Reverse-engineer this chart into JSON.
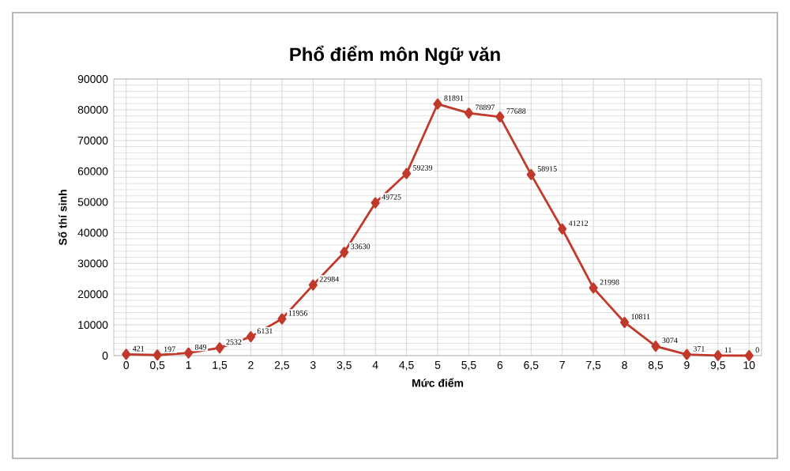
{
  "chart_data": {
    "type": "line",
    "title": "Phổ điểm môn Ngữ văn",
    "xlabel": "Mức điểm",
    "ylabel": "Số thí sinh",
    "categories": [
      "0",
      "0,5",
      "1",
      "1,5",
      "2",
      "2,5",
      "3",
      "3,5",
      "4",
      "4,5",
      "5",
      "5,5",
      "6",
      "6,5",
      "7",
      "7,5",
      "8",
      "8,5",
      "9",
      "9,5",
      "10"
    ],
    "values": [
      421,
      197,
      849,
      2532,
      6131,
      11956,
      22984,
      33630,
      49725,
      59239,
      81891,
      78897,
      77688,
      58915,
      41212,
      21998,
      10811,
      3074,
      371,
      11,
      0
    ],
    "color": "#c0392b",
    "marker": "diamond",
    "ylim": [
      0,
      90000
    ],
    "yticks": [
      0,
      10000,
      20000,
      30000,
      40000,
      50000,
      60000,
      70000,
      80000,
      90000
    ],
    "grid": true,
    "data_labels": true
  }
}
